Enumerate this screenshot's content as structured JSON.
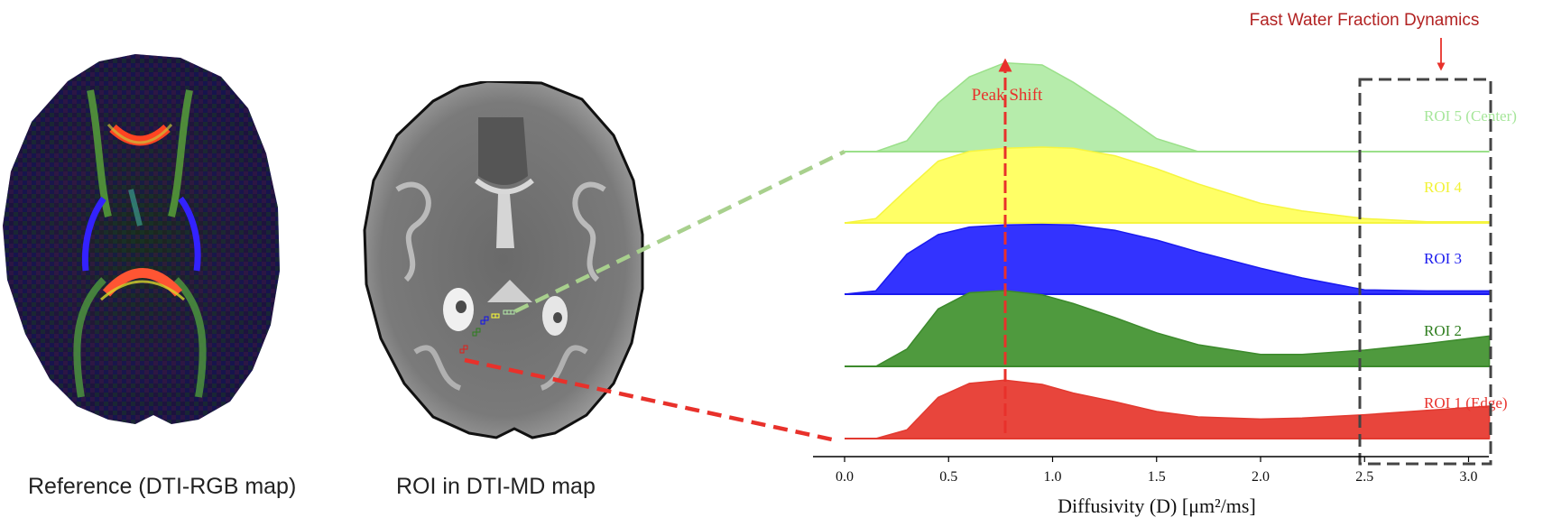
{
  "figure": {
    "panels": [
      {
        "id": "dti-rgb",
        "caption": "Reference (DTI-RGB map)"
      },
      {
        "id": "dti-md",
        "caption": "ROI in DTI-MD map"
      }
    ],
    "annotations": {
      "fast_water_title": "Fast Water Fraction Dynamics",
      "peak_shift": "Peak Shift"
    },
    "colors": {
      "roi1": "#e8453c",
      "roi2": "#4f9a3e",
      "roi3": "#3333ff",
      "roi4": "#ffff66",
      "roi5": "#b6ecab",
      "annotation_red": "#e8312b",
      "title_red": "#b22222",
      "dashed_box": "#444444",
      "green_connector": "#a8d08d",
      "red_connector": "#e8312b"
    }
  },
  "chart_data": {
    "type": "area",
    "subtype": "ridgeline",
    "title": "Fast Water Fraction Dynamics",
    "xlabel": "Diffusivity (D) [μm²/ms]",
    "ylabel": "",
    "xlim": [
      -0.15,
      3.25
    ],
    "x_ticks": [
      "0.0",
      "0.5",
      "1.0",
      "1.5",
      "2.0",
      "2.5",
      "3.0"
    ],
    "grid": false,
    "legend_position": "inline-right",
    "x": [
      0.0,
      0.15,
      0.3,
      0.45,
      0.6,
      0.77,
      0.95,
      1.1,
      1.3,
      1.5,
      1.7,
      2.0,
      2.2,
      2.5,
      2.8,
      3.1
    ],
    "series": [
      {
        "name": "ROI 5 (Center)",
        "values": [
          0.0,
          0.0,
          0.1,
          0.45,
          0.69,
          0.82,
          0.8,
          0.64,
          0.39,
          0.12,
          0.0,
          0.0,
          0.0,
          0.0,
          0.0,
          0.0
        ]
      },
      {
        "name": "ROI 4",
        "values": [
          0.0,
          0.04,
          0.31,
          0.57,
          0.66,
          0.69,
          0.7,
          0.69,
          0.62,
          0.5,
          0.36,
          0.18,
          0.11,
          0.04,
          0.01,
          0.01
        ]
      },
      {
        "name": "ROI 3",
        "values": [
          0.0,
          0.03,
          0.37,
          0.55,
          0.62,
          0.64,
          0.645,
          0.64,
          0.59,
          0.5,
          0.39,
          0.24,
          0.15,
          0.04,
          0.03,
          0.03
        ]
      },
      {
        "name": "ROI 2",
        "values": [
          0.0,
          0.0,
          0.16,
          0.53,
          0.68,
          0.7,
          0.66,
          0.58,
          0.45,
          0.31,
          0.2,
          0.11,
          0.11,
          0.15,
          0.21,
          0.28
        ]
      },
      {
        "name": "ROI 1 (Edge)",
        "values": [
          0.0,
          0.0,
          0.08,
          0.38,
          0.51,
          0.54,
          0.5,
          0.42,
          0.34,
          0.25,
          0.2,
          0.18,
          0.19,
          0.22,
          0.26,
          0.3
        ]
      }
    ],
    "annotations": [
      {
        "text": "Peak Shift",
        "type": "arrow-up",
        "x": 0.77
      },
      {
        "text": "Fast Water Fraction Dynamics",
        "type": "dashed-box",
        "x_range": [
          2.5,
          3.1
        ]
      }
    ]
  }
}
